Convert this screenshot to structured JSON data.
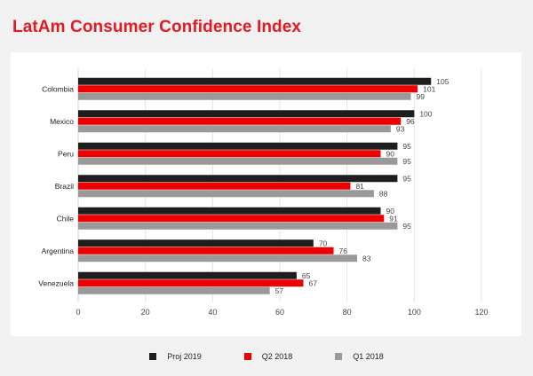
{
  "title": "LatAm Consumer Confidence Index",
  "chart_data": {
    "type": "bar",
    "orientation": "horizontal",
    "categories": [
      "Colombia",
      "Mexico",
      "Peru",
      "Brazil",
      "Chile",
      "Argentina",
      "Venezuela"
    ],
    "series": [
      {
        "name": "Proj 2019",
        "color": "#1e1e1e",
        "values": [
          105,
          100,
          95,
          95,
          90,
          70,
          65
        ]
      },
      {
        "name": "Q2 2018",
        "color": "#ee0000",
        "values": [
          101,
          96,
          90,
          81,
          91,
          76,
          67
        ]
      },
      {
        "name": "Q1 2018",
        "color": "#999999",
        "values": [
          99,
          93,
          95,
          88,
          95,
          83,
          57
        ]
      }
    ],
    "xlim": [
      0,
      120
    ],
    "xticks": [
      "0",
      "20",
      "40",
      "60",
      "80",
      "100",
      "120"
    ],
    "grid": "vertical",
    "legend": "bottom",
    "data_labels": true
  }
}
